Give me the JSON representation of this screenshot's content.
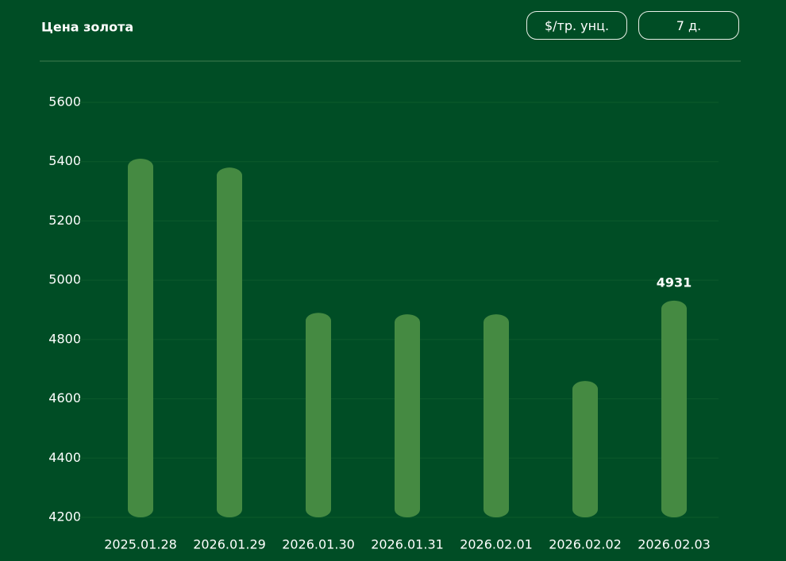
{
  "controls": {
    "unit": "$/тр. унц.",
    "period": "7 д."
  },
  "chart_data": {
    "type": "bar",
    "title": "Цена золота",
    "categories": [
      "2025.01.28",
      "2026.01.29",
      "2026.01.30",
      "2026.01.31",
      "2026.02.01",
      "2026.02.02",
      "2026.02.03"
    ],
    "values": [
      5410,
      5380,
      4890,
      4885,
      4885,
      4660,
      4931
    ],
    "value_labels": [
      null,
      null,
      null,
      null,
      null,
      null,
      "4931"
    ],
    "color": "#458a42",
    "ylim": [
      4200,
      5600
    ],
    "yticks": [
      4200,
      4400,
      4600,
      4800,
      5000,
      5200,
      5400,
      5600
    ],
    "grid": true
  }
}
